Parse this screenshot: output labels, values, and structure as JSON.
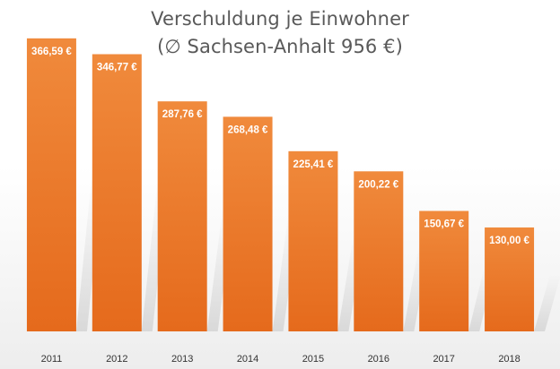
{
  "title": {
    "line1": "Verschuldung je Einwohner",
    "line2": "(∅ Sachsen-Anhalt 956 €)"
  },
  "colors": {
    "bar_top": "#f08a3c",
    "bar_bottom": "#e56a1c",
    "label": "#ffffff",
    "tick": "#333333",
    "title": "#595959"
  },
  "chart_data": {
    "type": "bar",
    "title": "Verschuldung je Einwohner (∅ Sachsen-Anhalt 956 €)",
    "xlabel": "",
    "ylabel": "",
    "ylim": [
      0,
      400
    ],
    "grid": false,
    "legend": "none",
    "categories": [
      "2011",
      "2012",
      "2013",
      "2014",
      "2015",
      "2016",
      "2017",
      "2018"
    ],
    "values": [
      366.59,
      346.77,
      287.76,
      268.48,
      225.41,
      200.22,
      150.67,
      130.0
    ],
    "value_labels": [
      "366,59 €",
      "346,77 €",
      "287,76 €",
      "268,48 €",
      "225,41 €",
      "200,22 €",
      "150,67 €",
      "130,00 €"
    ]
  }
}
